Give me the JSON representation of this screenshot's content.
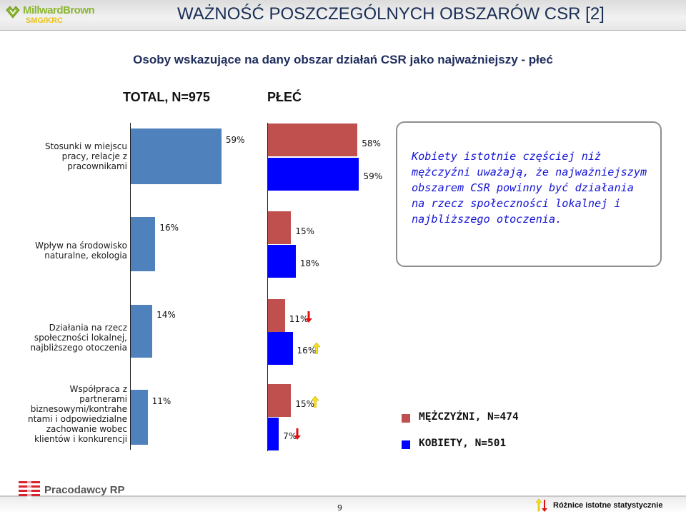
{
  "header": {
    "brand": "MillwardBrown",
    "brand_sub": "SMG/KRC",
    "title": "WAŻNOŚĆ POSZCZEGÓLNYCH OBSZARÓW CSR [2]"
  },
  "subtitle": "Osoby wskazujące na dany obszar działań CSR jako najważniejszy - płeć",
  "column_headers": {
    "total": "TOTAL, N=975",
    "gender": "PŁEĆ"
  },
  "callout": "Kobiety istotnie częściej niż mężczyźni uważają, że najważniejszym obszarem CSR powinny być działania na rzecz społeczności lokalnej i najbliższego otoczenia.",
  "legend": [
    {
      "label": "MĘŻCZYŹNI, N=474",
      "color": "#c0504d"
    },
    {
      "label": "KOBIETY, N=501",
      "color": "#0000ff"
    }
  ],
  "footer": {
    "partner": "Pracodawcy RP",
    "page_number": "9",
    "significance_label": "Różnice istotne statystycznie"
  },
  "colors": {
    "total": "#4f81bd",
    "men": "#c0504d",
    "women": "#0000ff",
    "sig_arrow_down": "#e01010",
    "sig_arrow_up": "#f5e21a"
  },
  "chart_data": {
    "type": "bar",
    "orientation": "horizontal",
    "categories": [
      "Stosunki w miejscu pracy, relacje z pracownikami",
      "Wpływ na środowisko naturalne, ekologia",
      "Działania na rzecz społeczności lokalnej, najbliższego otoczenia",
      "Współpraca z partnerami biznesowymi/kontrahentami i odpowiedzialne zachowanie wobec klientów i konkurencji"
    ],
    "category_lines": [
      [
        "Stosunki w miejscu",
        "pracy, relacje z",
        "pracownikami"
      ],
      [
        "Wpływ na środowisko",
        "naturalne, ekologia"
      ],
      [
        "Działania na rzecz",
        "społeczności lokalnej,",
        "najbliższego otoczenia"
      ],
      [
        "Współpraca z",
        "partnerami",
        "biznesowymi/kontrahe",
        "ntami i odpowiedzialne",
        "zachowanie wobec",
        "klientów i konkurencji"
      ]
    ],
    "series": [
      {
        "name": "TOTAL, N=975",
        "values": [
          59,
          16,
          14,
          11
        ],
        "labels": [
          "59%",
          "16%",
          "14%",
          "11%"
        ]
      },
      {
        "name": "MĘŻCZYŹNI, N=474",
        "values": [
          58,
          15,
          11,
          15
        ],
        "labels": [
          "58%",
          "15%",
          "11%",
          "15%"
        ]
      },
      {
        "name": "KOBIETY, N=501",
        "values": [
          59,
          18,
          16,
          7
        ],
        "labels": [
          "59%",
          "18%",
          "16%",
          "7%"
        ]
      }
    ],
    "significance": [
      {
        "category": 2,
        "series": "MĘŻCZYŹNI, N=474",
        "direction": "down"
      },
      {
        "category": 2,
        "series": "KOBIETY, N=501",
        "direction": "up"
      },
      {
        "category": 3,
        "series": "MĘŻCZYŹNI, N=474",
        "direction": "up"
      },
      {
        "category": 3,
        "series": "KOBIETY, N=501",
        "direction": "down"
      }
    ],
    "xlim": [
      0,
      100
    ]
  }
}
